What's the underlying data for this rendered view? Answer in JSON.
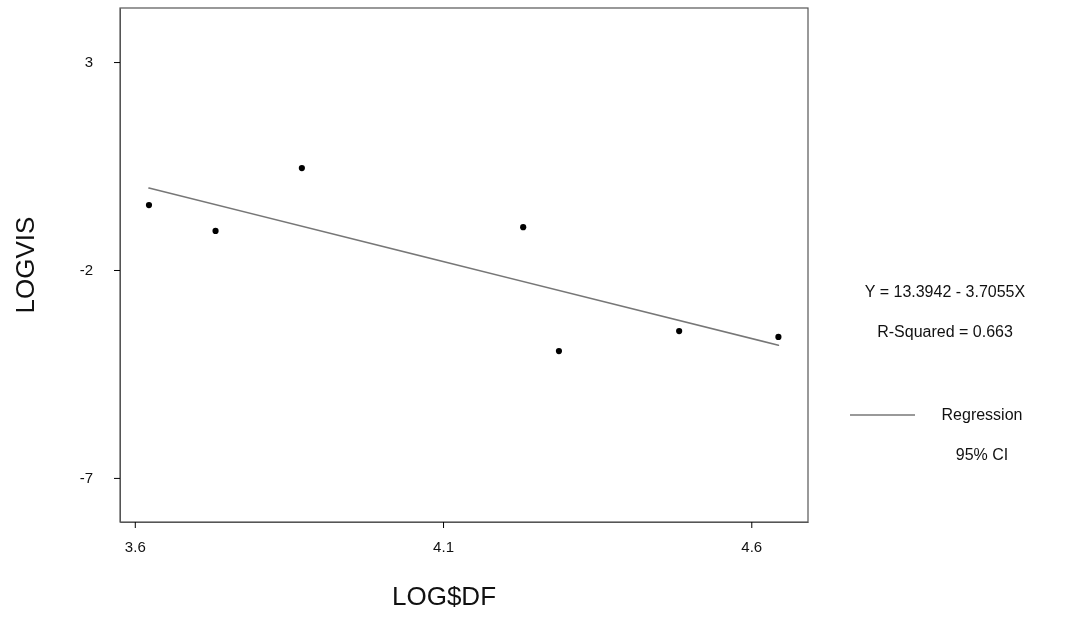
{
  "chart_data": {
    "type": "scatter",
    "xlabel": "LOG$DF",
    "ylabel": "LOGVIS",
    "xlim": [
      3.576,
      4.692
    ],
    "ylim": [
      -8.06,
      4.3
    ],
    "xticks": [
      3.6,
      4.1,
      4.6
    ],
    "yticks": [
      3,
      -2,
      -7
    ],
    "legend": "right",
    "series": [
      {
        "marker": "circle",
        "color": "#000000",
        "x": [
          3.623,
          3.731,
          3.871,
          4.23,
          4.288,
          4.483,
          4.644
        ],
        "values": [
          -0.44,
          -1.06,
          0.45,
          -0.97,
          -3.95,
          -3.47,
          -3.61
        ]
      },
      {
        "type": "line",
        "marker": "none",
        "name": "Regression",
        "color": "#777777",
        "x": [
          3.623,
          4.644
        ],
        "values": [
          -0.03,
          -3.81
        ]
      }
    ],
    "annotations": [
      "Y = 13.3942 - 3.7055X",
      "R-Squared = 0.663",
      "95% CI"
    ]
  }
}
